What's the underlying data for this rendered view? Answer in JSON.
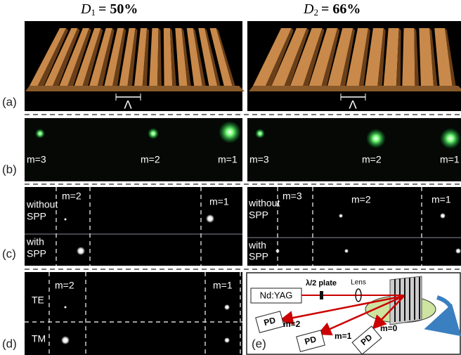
{
  "headers": [
    {
      "symbol": "D",
      "subscript": "1",
      "value": "= 50%"
    },
    {
      "symbol": "D",
      "subscript": "2",
      "value": "= 66%"
    }
  ],
  "panel_labels": [
    "(a)",
    "(b)",
    "(c)",
    "(d)",
    "(e)"
  ],
  "panel_a": {
    "period_left": "Λ",
    "period_right": "Λ"
  },
  "panel_b": {
    "left": [
      "m=3",
      "m=2",
      "m=1"
    ],
    "right": [
      "m=3",
      "m=2",
      "m=1"
    ]
  },
  "panel_c": {
    "left": {
      "orders": [
        "m=2",
        "m=1"
      ],
      "without": [
        "without",
        "SPP"
      ],
      "with": [
        "with",
        "SPP"
      ]
    },
    "right": {
      "orders": [
        "m=3",
        "m=2",
        "m=1"
      ],
      "without": [
        "without",
        "SPP"
      ],
      "with": [
        "with",
        "SPP"
      ]
    }
  },
  "panel_d": {
    "orders": [
      "m=2",
      "m=1"
    ],
    "modes": [
      "TE",
      "TM"
    ]
  },
  "panel_e": {
    "laser": "Nd:YAG",
    "waveplate": "λ/2 plate",
    "lens": "Lens",
    "detectors": [
      {
        "label": "PD",
        "order": "m=2"
      },
      {
        "label": "PD",
        "order": "m=1"
      },
      {
        "label": "PD",
        "order": "m=0"
      }
    ]
  }
}
